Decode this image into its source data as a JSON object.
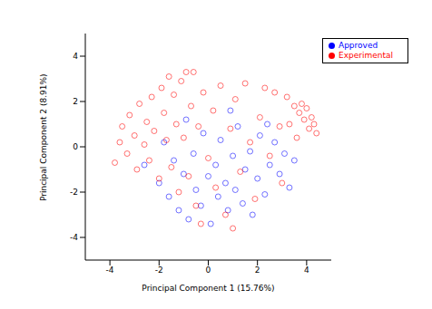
{
  "chart_data": {
    "type": "scatter",
    "x_label": "Principal Component 1 (15.76%)",
    "y_label": "Principal Component 2 (8.91%)",
    "xlim": [
      -5,
      5
    ],
    "ylim": [
      -5,
      5
    ],
    "xticks": [
      -4,
      -2,
      0,
      2,
      4
    ],
    "yticks": [
      -4,
      -2,
      0,
      2,
      4
    ],
    "legend": "upper right",
    "marker": "circle",
    "series": [
      {
        "name": "Approved",
        "color": "#0000ff",
        "values": [
          [
            -2.0,
            -1.6
          ],
          [
            -1.6,
            -2.2
          ],
          [
            -1.4,
            -0.6
          ],
          [
            -1.2,
            -2.8
          ],
          [
            -1.0,
            -1.2
          ],
          [
            -0.8,
            -3.2
          ],
          [
            -0.6,
            -0.3
          ],
          [
            -0.5,
            -1.9
          ],
          [
            -0.3,
            -2.6
          ],
          [
            -0.2,
            0.6
          ],
          [
            0.0,
            -1.3
          ],
          [
            0.1,
            -3.4
          ],
          [
            0.3,
            -0.8
          ],
          [
            0.4,
            -2.2
          ],
          [
            0.5,
            0.3
          ],
          [
            0.7,
            -1.6
          ],
          [
            0.8,
            -2.8
          ],
          [
            1.0,
            -0.4
          ],
          [
            1.1,
            -1.9
          ],
          [
            1.2,
            0.9
          ],
          [
            1.4,
            -2.5
          ],
          [
            1.5,
            -1.0
          ],
          [
            1.7,
            -0.2
          ],
          [
            1.8,
            -3.0
          ],
          [
            2.0,
            -1.4
          ],
          [
            2.1,
            0.5
          ],
          [
            2.3,
            -2.1
          ],
          [
            2.5,
            -0.8
          ],
          [
            2.7,
            0.2
          ],
          [
            2.9,
            -1.2
          ],
          [
            3.1,
            -0.3
          ],
          [
            3.3,
            -1.8
          ],
          [
            3.5,
            -0.6
          ],
          [
            -1.8,
            0.2
          ],
          [
            -2.6,
            -0.8
          ],
          [
            0.9,
            1.6
          ],
          [
            -0.9,
            1.2
          ],
          [
            2.4,
            1.0
          ]
        ]
      },
      {
        "name": "Experimental",
        "color": "#ff0000",
        "values": [
          [
            -3.8,
            -0.7
          ],
          [
            -3.6,
            0.2
          ],
          [
            -3.5,
            0.9
          ],
          [
            -3.3,
            -0.3
          ],
          [
            -3.2,
            1.4
          ],
          [
            -3.0,
            0.5
          ],
          [
            -2.9,
            -1.0
          ],
          [
            -2.8,
            1.9
          ],
          [
            -2.6,
            0.1
          ],
          [
            -2.5,
            1.1
          ],
          [
            -2.4,
            -0.6
          ],
          [
            -2.3,
            2.2
          ],
          [
            -2.2,
            0.7
          ],
          [
            -2.0,
            -1.4
          ],
          [
            -1.9,
            2.6
          ],
          [
            -1.8,
            1.5
          ],
          [
            -1.7,
            0.3
          ],
          [
            -1.6,
            3.1
          ],
          [
            -1.5,
            -0.9
          ],
          [
            -1.4,
            2.3
          ],
          [
            -1.3,
            1.0
          ],
          [
            -1.2,
            -2.0
          ],
          [
            -1.1,
            2.9
          ],
          [
            -1.0,
            0.4
          ],
          [
            -0.9,
            3.3
          ],
          [
            -0.8,
            -1.3
          ],
          [
            -0.7,
            1.8
          ],
          [
            -0.6,
            3.3
          ],
          [
            -0.5,
            -2.6
          ],
          [
            -0.4,
            0.9
          ],
          [
            -0.2,
            2.4
          ],
          [
            0.0,
            -0.5
          ],
          [
            0.2,
            1.6
          ],
          [
            0.3,
            -1.8
          ],
          [
            0.5,
            2.7
          ],
          [
            0.7,
            -3.0
          ],
          [
            0.9,
            0.8
          ],
          [
            1.1,
            2.1
          ],
          [
            1.3,
            -1.1
          ],
          [
            1.5,
            2.8
          ],
          [
            1.7,
            0.2
          ],
          [
            1.9,
            -2.3
          ],
          [
            2.1,
            1.3
          ],
          [
            2.3,
            2.6
          ],
          [
            2.5,
            -0.4
          ],
          [
            2.7,
            2.4
          ],
          [
            2.9,
            0.9
          ],
          [
            3.0,
            -1.6
          ],
          [
            3.2,
            2.2
          ],
          [
            3.3,
            1.0
          ],
          [
            3.5,
            1.8
          ],
          [
            3.6,
            0.4
          ],
          [
            3.7,
            1.5
          ],
          [
            3.8,
            1.9
          ],
          [
            3.9,
            1.2
          ],
          [
            4.0,
            1.7
          ],
          [
            4.1,
            0.8
          ],
          [
            4.2,
            1.3
          ],
          [
            4.3,
            1.0
          ],
          [
            4.4,
            0.6
          ],
          [
            -0.3,
            -3.4
          ],
          [
            1.0,
            -3.6
          ]
        ]
      }
    ]
  }
}
